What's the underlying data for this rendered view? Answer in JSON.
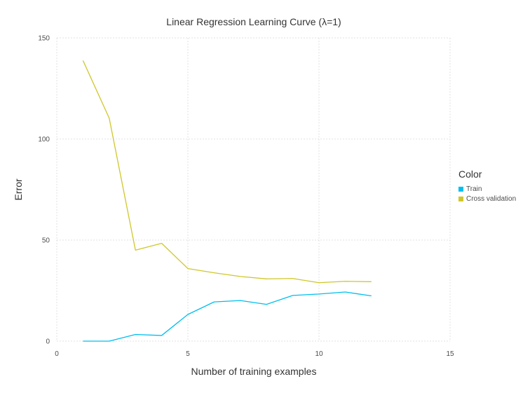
{
  "chart_data": {
    "type": "line",
    "title": "Linear Regression Learning Curve (λ=1)",
    "xlabel": "Number of training examples",
    "ylabel": "Error",
    "xlim": [
      0,
      15
    ],
    "ylim": [
      0,
      150
    ],
    "xticks": [
      0,
      5,
      10,
      15
    ],
    "yticks": [
      0,
      50,
      100,
      150
    ],
    "grid": true,
    "legend_title": "Color",
    "legend_position": "right",
    "x": [
      1,
      2,
      3,
      4,
      5,
      6,
      7,
      8,
      9,
      10,
      11,
      12
    ],
    "series": [
      {
        "name": "Train",
        "color": "#00bfef",
        "values": [
          0.0,
          0.0,
          3.3,
          2.8,
          13.2,
          19.4,
          20.1,
          18.2,
          22.6,
          23.3,
          24.3,
          22.4
        ]
      },
      {
        "name": "Cross validation",
        "color": "#cfc72a",
        "values": [
          138.8,
          110.3,
          45.0,
          48.4,
          35.9,
          33.8,
          32.0,
          30.8,
          31.0,
          28.9,
          29.6,
          29.4
        ]
      }
    ]
  }
}
